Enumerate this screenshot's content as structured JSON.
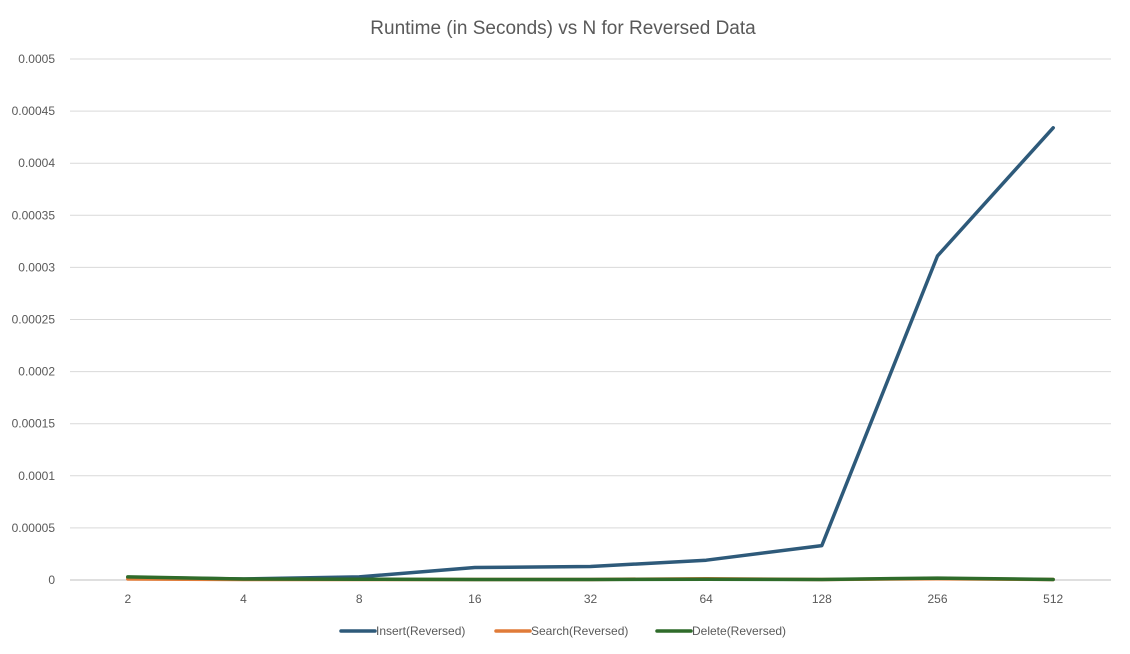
{
  "chart_data": {
    "type": "line",
    "title": "Runtime (in Seconds) vs N for Reversed Data",
    "xlabel": "",
    "ylabel": "",
    "categories": [
      "2",
      "4",
      "8",
      "16",
      "32",
      "64",
      "128",
      "256",
      "512"
    ],
    "ylim": [
      0,
      0.0005
    ],
    "yticks": [
      "0",
      "0.00005",
      "0.0001",
      "0.00015",
      "0.0002",
      "0.00025",
      "0.0003",
      "0.00035",
      "0.0004",
      "0.00045",
      "0.0005"
    ],
    "ytick_values": [
      0,
      5e-05,
      0.0001,
      0.00015,
      0.0002,
      0.00025,
      0.0003,
      0.00035,
      0.0004,
      0.00045,
      0.0005
    ],
    "grid": true,
    "legend_position": "bottom",
    "series": [
      {
        "name": "Insert(Reversed)",
        "color": "#2e5a7a",
        "values": [
          2.5e-06,
          1e-06,
          3e-06,
          1.2e-05,
          1.3e-05,
          1.9e-05,
          3.3e-05,
          0.000311,
          0.000434
        ]
      },
      {
        "name": "Search(Reversed)",
        "color": "#e07b39",
        "values": [
          1e-06,
          5e-07,
          5e-07,
          5e-07,
          5e-07,
          1.2e-06,
          5e-07,
          1.2e-06,
          5e-07
        ]
      },
      {
        "name": "Delete(Reversed)",
        "color": "#2f6b2a",
        "values": [
          3e-06,
          1e-06,
          8e-07,
          5e-07,
          5e-07,
          8e-07,
          5e-07,
          1.8e-06,
          5e-07
        ]
      }
    ]
  }
}
